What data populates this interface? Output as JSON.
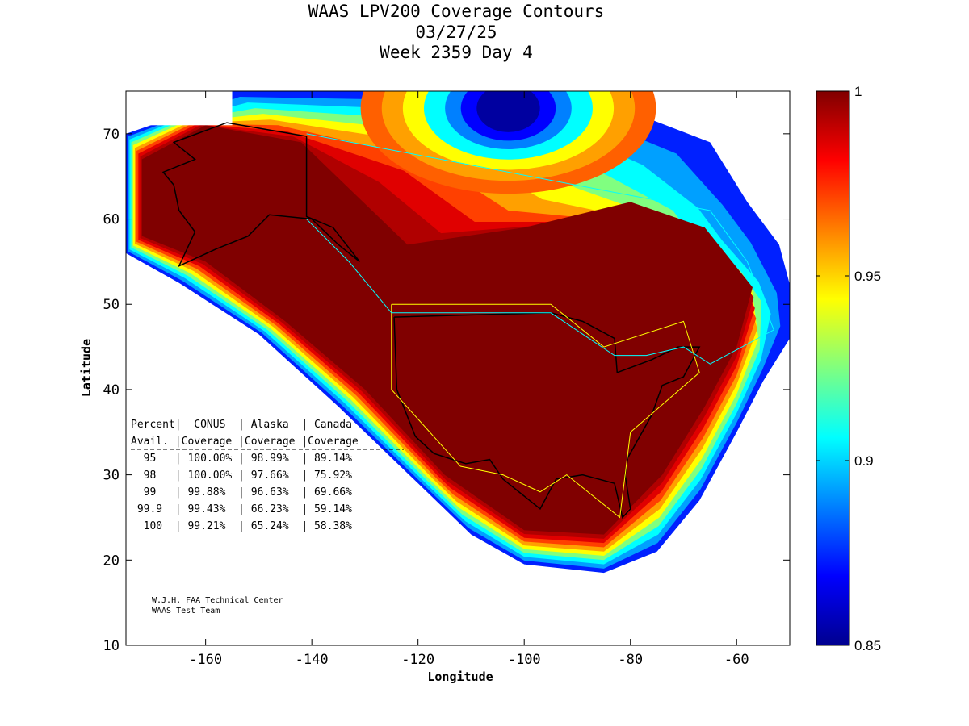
{
  "chart_data": {
    "type": "heatmap",
    "title": [
      "WAAS LPV200 Coverage Contours",
      "03/27/25",
      "Week 2359 Day 4"
    ],
    "xlabel": "Longitude",
    "ylabel": "Latitude",
    "xlim": [
      -175,
      -50
    ],
    "ylim": [
      10,
      75
    ],
    "xticks": [
      -160,
      -140,
      -120,
      -100,
      -80,
      -60
    ],
    "yticks": [
      10,
      20,
      30,
      40,
      50,
      60,
      70
    ],
    "colorbar": {
      "range": [
        0.85,
        1
      ],
      "ticks": [
        "1",
        "0.95",
        "0.9",
        "0.85"
      ],
      "tick_values": [
        1,
        0.95,
        0.9,
        0.85
      ],
      "colormap": "jet"
    },
    "table": {
      "header1": [
        "Percent",
        "CONUS",
        "Alaska",
        "Canada"
      ],
      "header2": [
        "Avail.",
        "Coverage",
        "Coverage",
        "Coverage"
      ],
      "rows": [
        [
          "95",
          "100.00%",
          "98.99%",
          "89.14%"
        ],
        [
          "98",
          "100.00%",
          "97.66%",
          "75.92%"
        ],
        [
          "99",
          "99.88%",
          "96.63%",
          "69.66%"
        ],
        [
          "99.9",
          "99.43%",
          "66.23%",
          "59.14%"
        ],
        [
          "100",
          "99.21%",
          "65.24%",
          "58.38%"
        ]
      ]
    },
    "credits": [
      "W.J.H. FAA Technical Center",
      "WAAS Test Team"
    ]
  }
}
